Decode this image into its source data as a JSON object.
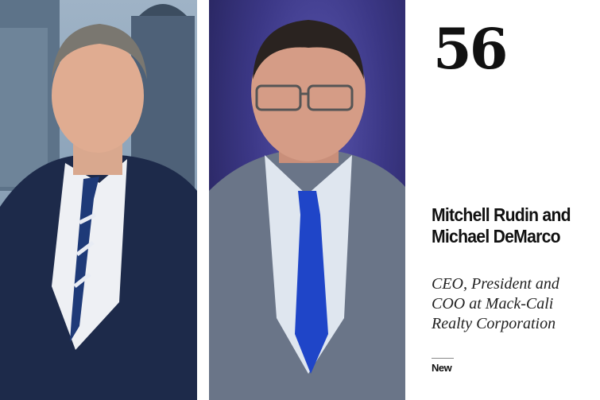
{
  "rank": "56",
  "name": "Mitchell Rudin and Michael DeMarco",
  "title": "CEO, President and COO at Mack-Cali Realty Corporation",
  "badge": "New",
  "colors": {
    "text": "#111111",
    "background": "#ffffff",
    "photo2_backdrop": "#3b3785"
  }
}
